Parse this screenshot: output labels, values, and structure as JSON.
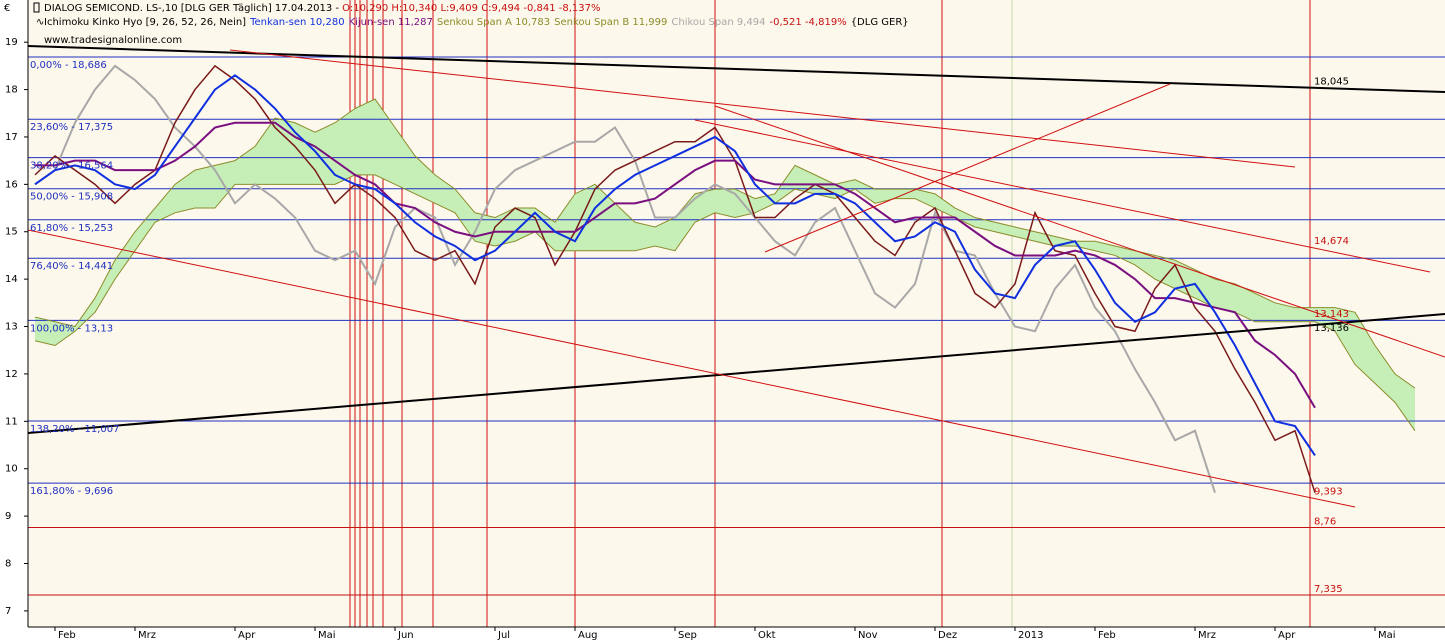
{
  "chart_data": {
    "type": "line",
    "y_axis_label": "€",
    "title": "DIALOG SEMICOND.   LS-,10 [DLG GER  Täglich] 17.04.2013 - ",
    "ohlc": "O:10,290 H:10,340 L:9,409 C:9,494 -0,841 -8,137%",
    "indicator": "Ichimoku Kinko Hyo [9, 26, 52, 26, Nein]",
    "change": "-0,521 -4,819%",
    "symbol": "{DLG GER}",
    "source": "www.tradesignalonline.com",
    "categories": [
      null,
      "Feb",
      null,
      null,
      null,
      "Mrz",
      null,
      null,
      null,
      null,
      "Apr",
      null,
      null,
      null,
      "Mai",
      null,
      null,
      null,
      "Jun",
      null,
      null,
      null,
      null,
      "Jul",
      null,
      null,
      null,
      "Aug",
      null,
      null,
      null,
      null,
      "Sep",
      null,
      null,
      null,
      "Okt",
      null,
      null,
      null,
      null,
      "Nov",
      null,
      null,
      null,
      "Dez",
      null,
      null,
      null,
      "2013",
      null,
      null,
      null,
      "Feb",
      null,
      null,
      null,
      null,
      "Mrz",
      null,
      null,
      null,
      "Apr",
      null,
      null,
      null,
      null,
      "Mai",
      null,
      null,
      null
    ],
    "values": [
      16.2,
      16.6,
      16.3,
      16.0,
      15.6,
      16.0,
      16.3,
      17.3,
      18.0,
      18.5,
      18.2,
      17.8,
      17.2,
      16.8,
      16.3,
      15.6,
      16.0,
      15.7,
      15.3,
      14.6,
      14.4,
      14.6,
      13.9,
      15.1,
      15.5,
      15.3,
      14.3,
      15.0,
      15.9,
      16.3,
      16.5,
      16.7,
      16.9,
      16.9,
      17.2,
      16.5,
      15.3,
      15.3,
      15.7,
      16.0,
      15.8,
      15.3,
      14.8,
      14.5,
      15.2,
      15.5,
      14.6,
      13.7,
      13.4,
      13.9,
      15.4,
      14.6,
      14.5,
      13.7,
      13.0,
      12.9,
      13.8,
      14.3,
      13.4,
      12.9,
      12.1,
      11.4,
      10.6,
      10.8,
      9.494,
      null,
      null,
      null,
      null,
      null,
      null
    ],
    "color": "#7a1a1a",
    "series": [
      {
        "name": "Tenkan-sen 10,280",
        "color": "#1030e0",
        "values": [
          16.0,
          16.3,
          16.4,
          16.3,
          16.0,
          15.9,
          16.2,
          16.8,
          17.4,
          18.0,
          18.3,
          18.0,
          17.6,
          17.1,
          16.7,
          16.2,
          16.0,
          15.9,
          15.6,
          15.2,
          14.9,
          14.7,
          14.4,
          14.6,
          15.0,
          15.4,
          15.0,
          14.8,
          15.5,
          15.9,
          16.2,
          16.4,
          16.6,
          16.8,
          17.0,
          16.7,
          16.0,
          15.6,
          15.6,
          15.8,
          15.8,
          15.6,
          15.2,
          14.8,
          14.9,
          15.2,
          15.0,
          14.2,
          13.7,
          13.6,
          14.3,
          14.7,
          14.8,
          14.2,
          13.5,
          13.1,
          13.3,
          13.8,
          13.9,
          13.3,
          12.6,
          11.8,
          11.0,
          10.9,
          10.28,
          null,
          null,
          null,
          null,
          null,
          null
        ]
      },
      {
        "name": "Kijun-sen 11,287",
        "color": "#7a1080",
        "values": [
          16.4,
          16.4,
          16.5,
          16.5,
          16.3,
          16.3,
          16.3,
          16.5,
          16.8,
          17.2,
          17.3,
          17.3,
          17.3,
          17.0,
          16.8,
          16.5,
          16.2,
          16.0,
          15.6,
          15.5,
          15.2,
          15.0,
          14.9,
          15.0,
          15.0,
          15.0,
          15.0,
          15.0,
          15.3,
          15.6,
          15.6,
          15.7,
          16.0,
          16.3,
          16.5,
          16.5,
          16.1,
          16.0,
          16.0,
          16.0,
          16.0,
          15.8,
          15.5,
          15.2,
          15.3,
          15.3,
          15.3,
          15.0,
          14.7,
          14.5,
          14.5,
          14.5,
          14.6,
          14.5,
          14.3,
          14.0,
          13.6,
          13.6,
          13.5,
          13.4,
          13.3,
          12.7,
          12.4,
          12.0,
          11.287,
          null,
          null,
          null,
          null,
          null,
          null
        ]
      },
      {
        "name": "Senkou Span A 10,783",
        "color": "#8c8c2a",
        "values": [
          13.2,
          13.1,
          13.0,
          13.6,
          14.4,
          15.0,
          15.5,
          16.0,
          16.3,
          16.4,
          16.5,
          16.8,
          17.4,
          17.3,
          17.1,
          17.3,
          17.6,
          17.8,
          17.2,
          16.6,
          16.2,
          15.9,
          15.4,
          15.3,
          15.5,
          15.5,
          15.2,
          15.8,
          16.0,
          15.6,
          15.2,
          15.1,
          15.3,
          15.8,
          15.9,
          15.9,
          15.7,
          15.8,
          16.4,
          16.2,
          16.0,
          16.1,
          15.9,
          15.9,
          15.9,
          15.8,
          15.5,
          15.3,
          15.2,
          15.1,
          15.0,
          14.9,
          14.8,
          14.8,
          14.7,
          14.6,
          14.5,
          14.4,
          14.2,
          14.0,
          13.9,
          13.7,
          13.5,
          13.4,
          13.4,
          13.4,
          13.3,
          12.6,
          12.0,
          11.7,
          null
        ]
      },
      {
        "name": "Senkou Span B 11,999",
        "color": "#8c8c2a",
        "values": [
          12.7,
          12.6,
          12.9,
          13.3,
          14.0,
          14.6,
          15.2,
          15.4,
          15.5,
          15.5,
          16.0,
          16.0,
          16.0,
          16.0,
          16.0,
          16.0,
          16.2,
          16.2,
          16.0,
          15.8,
          15.6,
          15.4,
          14.8,
          14.7,
          14.8,
          15.0,
          14.6,
          14.6,
          14.6,
          14.6,
          14.6,
          14.7,
          14.6,
          15.2,
          15.4,
          15.3,
          15.4,
          15.6,
          15.9,
          15.8,
          15.7,
          15.9,
          15.6,
          15.7,
          15.7,
          15.5,
          15.3,
          15.1,
          15.0,
          14.9,
          14.8,
          14.7,
          14.7,
          14.6,
          14.5,
          14.3,
          14.0,
          13.8,
          13.6,
          13.4,
          13.3,
          13.1,
          13.1,
          13.1,
          13.1,
          12.9,
          12.2,
          11.8,
          11.4,
          10.8,
          null
        ]
      },
      {
        "name": "Chikou Span 9,494",
        "color": "#a8a8a8",
        "values": [
          16.0,
          16.3,
          17.3,
          18.0,
          18.5,
          18.2,
          17.8,
          17.2,
          16.8,
          16.3,
          15.6,
          16.0,
          15.7,
          15.3,
          14.6,
          14.4,
          14.6,
          13.9,
          15.1,
          15.5,
          15.3,
          14.3,
          15.0,
          15.9,
          16.3,
          16.5,
          16.7,
          16.9,
          16.9,
          17.2,
          16.5,
          15.3,
          15.3,
          15.7,
          16.0,
          15.8,
          15.3,
          14.8,
          14.5,
          15.2,
          15.5,
          14.6,
          13.7,
          13.4,
          13.9,
          15.4,
          14.6,
          14.5,
          13.7,
          13.0,
          12.9,
          13.8,
          14.3,
          13.4,
          12.9,
          12.1,
          11.4,
          10.6,
          10.8,
          9.494,
          null,
          null,
          null,
          null,
          null,
          null,
          null,
          null,
          null,
          null,
          null
        ]
      }
    ],
    "cloud_color": "#c6efb8",
    "ylim": [
      6.66,
      19.89
    ],
    "yticks": [
      7,
      8,
      9,
      10,
      11,
      12,
      13,
      14,
      15,
      16,
      17,
      18,
      19
    ],
    "levels_color": "#2030c0",
    "levels": [
      {
        "value": 18.686,
        "label": "0,00% - 18,686"
      },
      {
        "value": 17.375,
        "label": "23,60% - 17,375"
      },
      {
        "value": 16.564,
        "label": "38,20% - 16,564"
      },
      {
        "value": 15.908,
        "label": "50,00% - 15,908"
      },
      {
        "value": 15.253,
        "label": "61,80% - 15,253"
      },
      {
        "value": 14.441,
        "label": "76,40% - 14,441"
      },
      {
        "value": 13.13,
        "label": "100,00% - 13,13"
      },
      {
        "value": 11.007,
        "label": "138,20% - 11,007"
      },
      {
        "value": 9.696,
        "label": "161,80% - 9,696"
      }
    ],
    "red_levels_color": "#c81010",
    "red_levels": [
      {
        "value": 8.76,
        "label": "8,76"
      },
      {
        "value": 7.335,
        "label": "7,335"
      }
    ],
    "annotations": [
      {
        "value": 18.045,
        "label": "18,045",
        "color": "#000000"
      },
      {
        "value": 14.674,
        "label": "14,674",
        "color": "#c81010"
      },
      {
        "value": 13.143,
        "label": "13,143",
        "color": "#c81010"
      },
      {
        "value": 13.136,
        "label": "13,136",
        "color": "#000000"
      },
      {
        "value": 9.393,
        "label": "9,393",
        "color": "#c81010"
      }
    ]
  }
}
